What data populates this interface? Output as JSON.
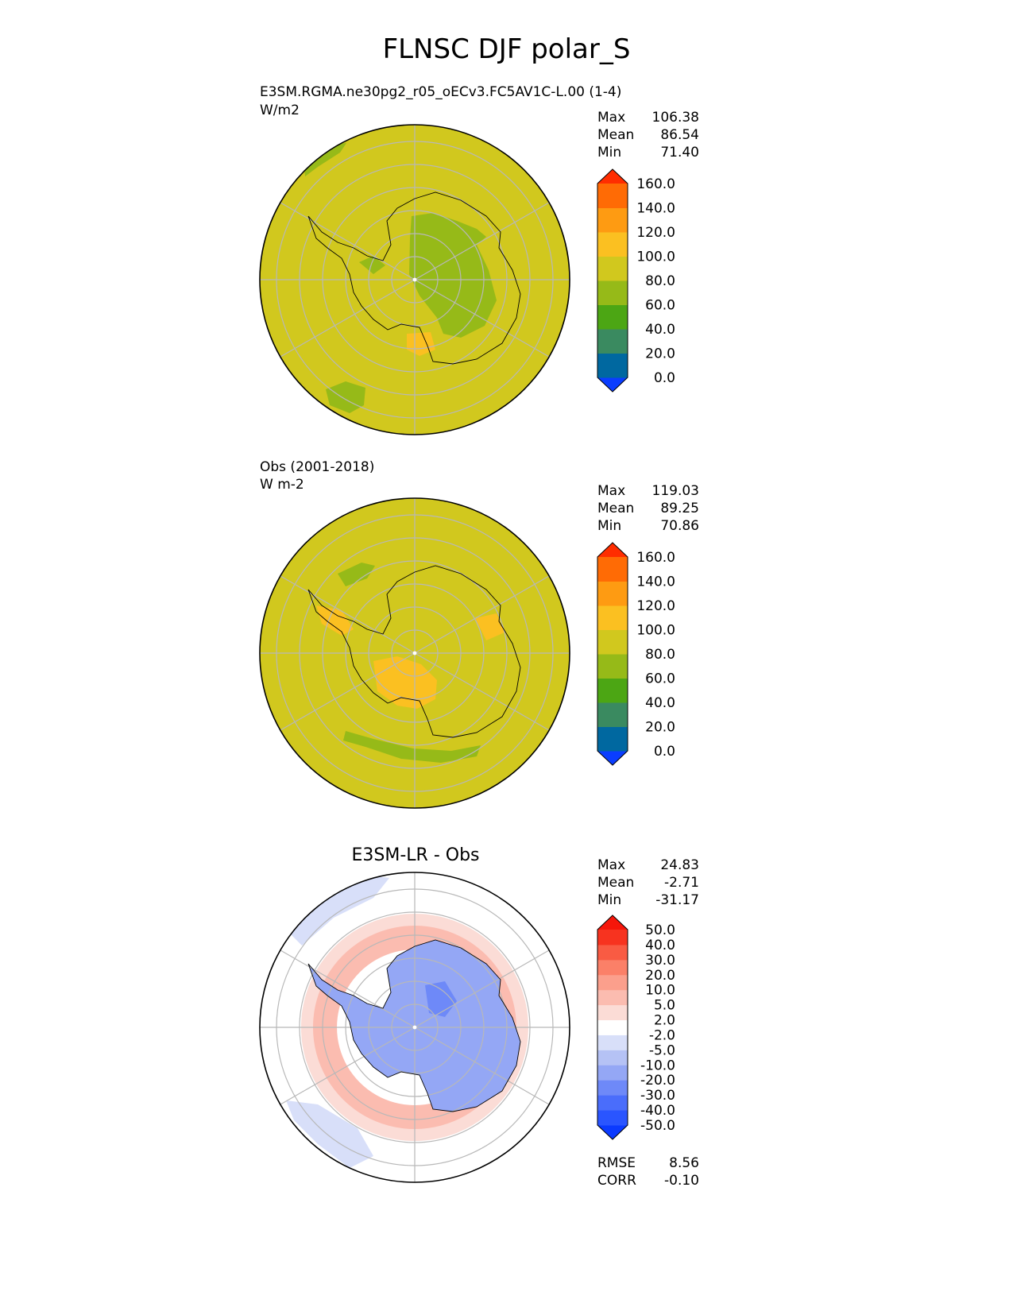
{
  "figure_title": "FLNSC DJF polar_S",
  "panels": [
    {
      "title_line1": "E3SM.RGMA.ne30pg2_r05_oECv3.FC5AV1C-L.00 (1-4)",
      "title_line2": "W/m2",
      "stats": {
        "max_label": "Max",
        "max": "106.38",
        "mean_label": "Mean",
        "mean": "86.54",
        "min_label": "Min",
        "min": "71.40"
      }
    },
    {
      "title_line1": "Obs (2001-2018)",
      "title_line2": "W m-2",
      "stats": {
        "max_label": "Max",
        "max": "119.03",
        "mean_label": "Mean",
        "mean": "89.25",
        "min_label": "Min",
        "min": "70.86"
      }
    },
    {
      "title_center": "E3SM-LR - Obs",
      "stats": {
        "max_label": "Max",
        "max": "24.83",
        "mean_label": "Mean",
        "mean": "-2.71",
        "min_label": "Min",
        "min": "-31.17"
      },
      "metrics": {
        "rmse_label": "RMSE",
        "rmse": "8.56",
        "corr_label": "CORR",
        "corr": "-0.10"
      }
    }
  ],
  "chart_data": [
    {
      "type": "heatmap",
      "projection": "south polar stereographic",
      "title": "E3SM.RGMA.ne30pg2_r05_oECv3.FC5AV1C-L.00 (1-4)",
      "units": "W/m2",
      "max": 106.38,
      "mean": 86.54,
      "min": 71.4,
      "dominant_range": [
        80,
        100
      ],
      "colorbar": {
        "levels": [
          0,
          20,
          40,
          60,
          80,
          100,
          120,
          140,
          160
        ],
        "tick_labels": [
          "160.0",
          "140.0",
          "120.0",
          "100.0",
          "80.0",
          "60.0",
          "40.0",
          "20.0",
          "0.0"
        ],
        "colors": [
          "#0a3dff",
          "#0068a0",
          "#3a8a60",
          "#4ca614",
          "#96ba18",
          "#d1c81e",
          "#fbc021",
          "#fe9b12",
          "#ff6b05",
          "#ff2d00"
        ],
        "extend": "both"
      }
    },
    {
      "type": "heatmap",
      "projection": "south polar stereographic",
      "title": "Obs (2001-2018)",
      "units": "W m-2",
      "max": 119.03,
      "mean": 89.25,
      "min": 70.86,
      "dominant_range": [
        80,
        100
      ],
      "colorbar": {
        "levels": [
          0,
          20,
          40,
          60,
          80,
          100,
          120,
          140,
          160
        ],
        "tick_labels": [
          "160.0",
          "140.0",
          "120.0",
          "100.0",
          "80.0",
          "60.0",
          "40.0",
          "20.0",
          "0.0"
        ],
        "colors": [
          "#0a3dff",
          "#0068a0",
          "#3a8a60",
          "#4ca614",
          "#96ba18",
          "#d1c81e",
          "#fbc021",
          "#fe9b12",
          "#ff6b05",
          "#ff2d00"
        ],
        "extend": "both"
      }
    },
    {
      "type": "heatmap",
      "projection": "south polar stereographic",
      "title": "E3SM-LR - Obs",
      "max": 24.83,
      "mean": -2.71,
      "min": -31.17,
      "rmse": 8.56,
      "corr": -0.1,
      "colorbar": {
        "levels": [
          -50,
          -40,
          -30,
          -20,
          -10,
          -5,
          -2,
          2,
          5,
          10,
          20,
          30,
          40,
          50
        ],
        "tick_labels": [
          "50.0",
          "40.0",
          "30.0",
          "20.0",
          "10.0",
          "5.0",
          "2.0",
          "-2.0",
          "-5.0",
          "-10.0",
          "-20.0",
          "-30.0",
          "-40.0",
          "-50.0"
        ],
        "colors": [
          "#0b3aff",
          "#2a55ff",
          "#4a6dfb",
          "#6e89f8",
          "#94a7f5",
          "#b5c2f5",
          "#d8dff9",
          "#ffffff",
          "#fbdcd6",
          "#fbbcb0",
          "#fb9f8c",
          "#fb8068",
          "#f95b43",
          "#f7331f",
          "#f5160a"
        ],
        "extend": "both"
      }
    }
  ]
}
